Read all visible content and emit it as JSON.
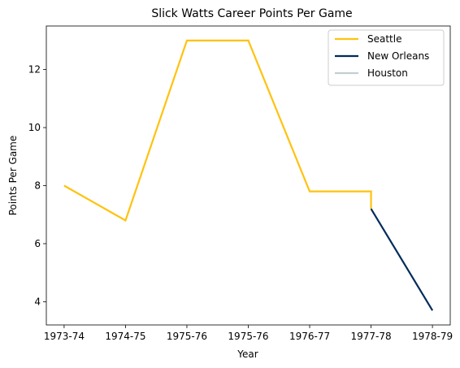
{
  "chart_data": {
    "type": "line",
    "title": "Slick Watts Career Points Per Game",
    "xlabel": "Year",
    "ylabel": "Points Per Game",
    "x_ticks": [
      {
        "x": 0,
        "label": "1973-74"
      },
      {
        "x": 1,
        "label": "1974-75"
      },
      {
        "x": 2,
        "label": "1975-76"
      },
      {
        "x": 3,
        "label": "1975-76"
      },
      {
        "x": 4,
        "label": "1976-77"
      },
      {
        "x": 5,
        "label": "1977-78"
      },
      {
        "x": 6,
        "label": "1978-79"
      }
    ],
    "y_ticks": [
      4,
      6,
      8,
      10,
      12
    ],
    "xlim": [
      -0.29,
      6.29
    ],
    "ylim": [
      3.2,
      13.5
    ],
    "grid": false,
    "legend_position": "top-right",
    "series": [
      {
        "name": "Seattle",
        "color": "#FFC20E",
        "points": [
          [
            0,
            8.0
          ],
          [
            1,
            6.8
          ],
          [
            2,
            13.0
          ],
          [
            3,
            13.0
          ],
          [
            4,
            7.8
          ],
          [
            5,
            7.8
          ],
          [
            5,
            7.2
          ]
        ]
      },
      {
        "name": "New Orleans",
        "color": "#002B5C",
        "points": [
          [
            5,
            7.2
          ],
          [
            6,
            3.7
          ]
        ]
      },
      {
        "name": "Houston",
        "color": "#C4CED4",
        "points": []
      }
    ]
  }
}
